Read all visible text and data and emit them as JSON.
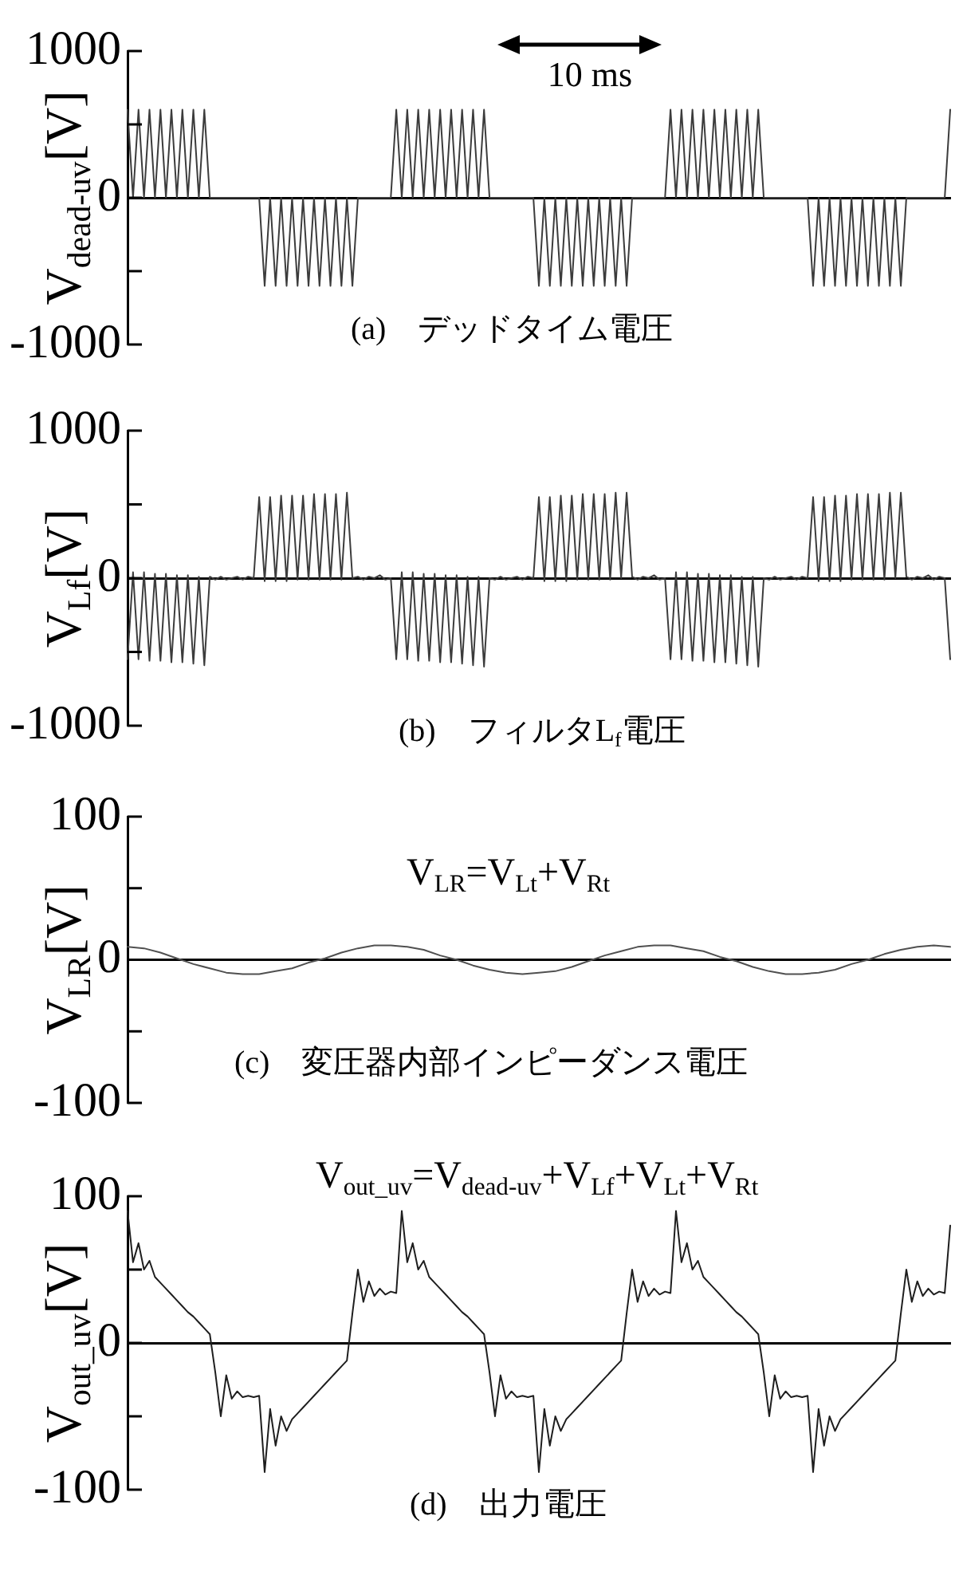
{
  "chart_data": [
    {
      "type": "line",
      "ylabel": "V$_{dead-uv}$[V]",
      "annotations": [
        "10 ms",
        "(a)　デッドタイム電圧"
      ],
      "marker": "none",
      "tick_labels": "y",
      "color": "#3c3c3c",
      "ylim": [
        -1000,
        1000
      ],
      "yticks": [
        -1000,
        {
          "value": -500,
          "label": null
        },
        0,
        {
          "value": 500,
          "label": null
        },
        1000
      ],
      "categories": [
        null,
        null,
        null,
        null,
        null,
        null,
        null,
        null,
        null,
        null,
        null,
        null,
        null,
        null,
        null,
        null,
        null,
        null,
        null,
        null,
        null,
        null,
        null,
        null,
        null,
        null,
        null,
        null,
        null,
        null,
        null,
        null,
        null,
        null,
        null,
        null,
        null,
        null,
        null,
        null,
        null,
        null,
        null,
        null,
        null,
        null,
        null,
        null,
        null,
        null,
        null,
        null,
        null,
        null,
        null,
        null,
        null,
        null,
        null,
        null,
        null,
        null,
        null,
        null,
        null,
        null,
        null,
        null,
        null,
        null,
        null,
        null,
        null,
        null,
        null,
        null,
        null,
        null,
        null,
        null,
        null,
        null,
        null,
        null,
        null,
        null,
        null,
        null,
        null,
        null,
        null,
        null,
        null,
        null,
        null,
        null,
        null,
        null,
        null,
        null,
        null,
        null,
        null,
        null,
        null,
        null,
        null,
        null,
        null,
        null,
        null,
        null,
        null,
        null,
        null,
        null,
        null,
        null,
        null,
        null,
        null,
        null,
        null,
        null,
        null,
        null,
        null,
        null,
        null,
        null,
        null,
        null,
        null,
        null,
        null,
        null,
        null,
        null,
        null,
        null,
        null,
        null,
        null,
        null,
        null,
        null,
        null,
        null,
        null,
        null,
        null
      ],
      "values": [
        600,
        0,
        600,
        0,
        600,
        0,
        600,
        0,
        600,
        0,
        600,
        0,
        600,
        0,
        600,
        0,
        0,
        0,
        0,
        0,
        0,
        0,
        0,
        0,
        0,
        -600,
        0,
        -600,
        0,
        -600,
        0,
        -600,
        0,
        -600,
        0,
        -600,
        0,
        -600,
        0,
        -600,
        0,
        -600,
        0,
        0,
        0,
        0,
        0,
        0,
        0,
        600,
        0,
        600,
        0,
        600,
        0,
        600,
        0,
        600,
        0,
        600,
        0,
        600,
        0,
        600,
        0,
        600,
        0,
        0,
        0,
        0,
        0,
        0,
        0,
        0,
        0,
        -600,
        0,
        -600,
        0,
        -600,
        0,
        -600,
        0,
        -600,
        0,
        -600,
        0,
        -600,
        0,
        -600,
        0,
        -600,
        0,
        0,
        0,
        0,
        0,
        0,
        0,
        600,
        0,
        600,
        0,
        600,
        0,
        600,
        0,
        600,
        0,
        600,
        0,
        600,
        0,
        600,
        0,
        600,
        0,
        0,
        0,
        0,
        0,
        0,
        0,
        0,
        0,
        -600,
        0,
        -600,
        0,
        -600,
        0,
        -600,
        0,
        -600,
        0,
        -600,
        0,
        -600,
        0,
        -600,
        0,
        -600,
        0,
        0,
        0,
        0,
        0,
        0,
        0,
        0,
        600
      ]
    },
    {
      "type": "line",
      "ylabel": "V$_{Lf}$[V]",
      "annotations": [
        "(b)　フィルタL$_{f}$電圧"
      ],
      "marker": "none",
      "tick_labels": "y",
      "color": "#3c3c3c",
      "ylim": [
        -1000,
        1000
      ],
      "yticks": [
        -1000,
        {
          "value": -500,
          "label": null
        },
        0,
        {
          "value": 500,
          "label": null
        },
        1000
      ],
      "categories": [
        null,
        null,
        null,
        null,
        null,
        null,
        null,
        null,
        null,
        null,
        null,
        null,
        null,
        null,
        null,
        null,
        null,
        null,
        null,
        null,
        null,
        null,
        null,
        null,
        null,
        null,
        null,
        null,
        null,
        null,
        null,
        null,
        null,
        null,
        null,
        null,
        null,
        null,
        null,
        null,
        null,
        null,
        null,
        null,
        null,
        null,
        null,
        null,
        null,
        null,
        null,
        null,
        null,
        null,
        null,
        null,
        null,
        null,
        null,
        null,
        null,
        null,
        null,
        null,
        null,
        null,
        null,
        null,
        null,
        null,
        null,
        null,
        null,
        null,
        null,
        null,
        null,
        null,
        null,
        null,
        null,
        null,
        null,
        null,
        null,
        null,
        null,
        null,
        null,
        null,
        null,
        null,
        null,
        null,
        null,
        null,
        null,
        null,
        null,
        null,
        null,
        null,
        null,
        null,
        null,
        null,
        null,
        null,
        null,
        null,
        null,
        null,
        null,
        null,
        null,
        null,
        null,
        null,
        null,
        null,
        null,
        null,
        null,
        null,
        null,
        null,
        null,
        null,
        null,
        null,
        null,
        null,
        null,
        null,
        null,
        null,
        null,
        null,
        null,
        null,
        null,
        null,
        null,
        null,
        null,
        null,
        null,
        null,
        null,
        null,
        null
      ],
      "values": [
        -550,
        40,
        -550,
        40,
        -560,
        30,
        -560,
        30,
        -570,
        20,
        -570,
        20,
        -580,
        10,
        -590,
        10,
        -10,
        10,
        -10,
        0,
        10,
        -10,
        10,
        0,
        550,
        -20,
        550,
        -20,
        560,
        -20,
        560,
        -10,
        560,
        -10,
        570,
        -10,
        570,
        -10,
        570,
        -10,
        580,
        0,
        10,
        -10,
        10,
        0,
        20,
        -10,
        0,
        -550,
        40,
        -550,
        40,
        -560,
        30,
        -560,
        30,
        -570,
        20,
        -570,
        20,
        -580,
        10,
        -590,
        10,
        -600,
        0,
        -10,
        10,
        -10,
        0,
        10,
        -10,
        10,
        0,
        550,
        -20,
        550,
        -20,
        560,
        -20,
        560,
        -10,
        570,
        -10,
        570,
        -10,
        570,
        -10,
        580,
        0,
        580,
        10,
        -10,
        10,
        0,
        20,
        -10,
        0,
        -550,
        40,
        -550,
        40,
        -560,
        30,
        -560,
        30,
        -570,
        20,
        -570,
        20,
        -580,
        10,
        -590,
        10,
        -600,
        0,
        -10,
        10,
        -10,
        0,
        10,
        -10,
        10,
        0,
        550,
        -20,
        550,
        -20,
        560,
        -20,
        560,
        -10,
        570,
        -10,
        570,
        -10,
        570,
        -10,
        580,
        0,
        580,
        10,
        -10,
        10,
        0,
        20,
        -10,
        10,
        0,
        -550
      ]
    },
    {
      "type": "line",
      "ylabel": "V$_{LR}$[V]",
      "annotations": [
        "V$_{LR}$=V$_{Lt}$+V$_{Rt}$",
        "(c)　変圧器内部インピーダンス電圧"
      ],
      "marker": "none",
      "tick_labels": "y",
      "color": "#505050",
      "ylim": [
        -100,
        100
      ],
      "yticks": [
        -100,
        {
          "value": -50,
          "label": null
        },
        0,
        {
          "value": 50,
          "label": null
        },
        100
      ],
      "categories": [
        null,
        null,
        null,
        null,
        null,
        null,
        null,
        null,
        null,
        null,
        null,
        null,
        null,
        null,
        null,
        null,
        null,
        null,
        null,
        null,
        null,
        null,
        null,
        null,
        null,
        null,
        null,
        null,
        null,
        null,
        null,
        null,
        null,
        null,
        null,
        null,
        null,
        null,
        null,
        null,
        null,
        null,
        null,
        null,
        null,
        null,
        null,
        null,
        null,
        null,
        null
      ],
      "values": [
        9,
        8,
        5,
        1,
        -3,
        -6,
        -9,
        -10,
        -10,
        -8,
        -6,
        -2,
        1,
        5,
        8,
        10,
        10,
        9,
        7,
        3,
        0,
        -4,
        -7,
        -9,
        -10,
        -9,
        -8,
        -5,
        -1,
        3,
        6,
        9,
        10,
        10,
        8,
        6,
        2,
        -1,
        -5,
        -8,
        -10,
        -10,
        -9,
        -7,
        -3,
        0,
        4,
        7,
        9,
        10,
        9
      ]
    },
    {
      "type": "line",
      "ylabel": "V$_{out_uv}$[V]",
      "annotations": [
        "V$_{out_uv}$=V$_{dead-uv}$+V$_{Lf}$+V$_{Lt}$+V$_{Rt}$",
        "(d)　出力電圧"
      ],
      "marker": "none",
      "tick_labels": "y",
      "color": "#1e1e1e",
      "ylim": [
        -100,
        100
      ],
      "yticks": [
        -100,
        {
          "value": -50,
          "label": null
        },
        0,
        {
          "value": 50,
          "label": null
        },
        100
      ],
      "categories": [
        null,
        null,
        null,
        null,
        null,
        null,
        null,
        null,
        null,
        null,
        null,
        null,
        null,
        null,
        null,
        null,
        null,
        null,
        null,
        null,
        null,
        null,
        null,
        null,
        null,
        null,
        null,
        null,
        null,
        null,
        null,
        null,
        null,
        null,
        null,
        null,
        null,
        null,
        null,
        null,
        null,
        null,
        null,
        null,
        null,
        null,
        null,
        null,
        null,
        null,
        null,
        null,
        null,
        null,
        null,
        null,
        null,
        null,
        null,
        null,
        null,
        null,
        null,
        null,
        null,
        null,
        null,
        null,
        null,
        null,
        null,
        null,
        null,
        null,
        null,
        null,
        null,
        null,
        null,
        null,
        null,
        null,
        null,
        null,
        null,
        null,
        null,
        null,
        null,
        null,
        null,
        null,
        null,
        null,
        null,
        null,
        null,
        null,
        null,
        null,
        null,
        null,
        null,
        null,
        null,
        null,
        null,
        null,
        null,
        null,
        null,
        null,
        null,
        null,
        null,
        null,
        null,
        null,
        null,
        null,
        null,
        null,
        null,
        null,
        null,
        null,
        null,
        null,
        null,
        null,
        null,
        null,
        null,
        null,
        null,
        null,
        null,
        null,
        null,
        null,
        null,
        null,
        null,
        null,
        null,
        null,
        null,
        null,
        null,
        null,
        null
      ],
      "values": [
        90,
        55,
        68,
        50,
        56,
        45,
        41,
        37,
        33,
        29,
        25,
        21,
        18,
        14,
        10,
        6,
        -20,
        -50,
        -22,
        -38,
        -33,
        -37,
        -36,
        -37,
        -36,
        -88,
        -45,
        -70,
        -50,
        -60,
        -52,
        -48,
        -44,
        -40,
        -36,
        -32,
        -28,
        -24,
        -20,
        -16,
        -12,
        20,
        50,
        28,
        42,
        32,
        37,
        33,
        35,
        34,
        90,
        55,
        68,
        50,
        56,
        45,
        41,
        37,
        33,
        29,
        25,
        21,
        18,
        14,
        10,
        6,
        -20,
        -50,
        -22,
        -38,
        -33,
        -37,
        -36,
        -37,
        -36,
        -88,
        -45,
        -70,
        -50,
        -60,
        -52,
        -48,
        -44,
        -40,
        -36,
        -32,
        -28,
        -24,
        -20,
        -16,
        -12,
        20,
        50,
        28,
        42,
        32,
        37,
        33,
        35,
        34,
        90,
        55,
        68,
        50,
        56,
        45,
        41,
        37,
        33,
        29,
        25,
        21,
        18,
        14,
        10,
        6,
        -20,
        -50,
        -22,
        -38,
        -33,
        -37,
        -36,
        -37,
        -36,
        -88,
        -45,
        -70,
        -50,
        -60,
        -52,
        -48,
        -44,
        -40,
        -36,
        -32,
        -28,
        -24,
        -20,
        -16,
        -12,
        20,
        50,
        28,
        42,
        32,
        37,
        33,
        35,
        34,
        80
      ]
    }
  ]
}
